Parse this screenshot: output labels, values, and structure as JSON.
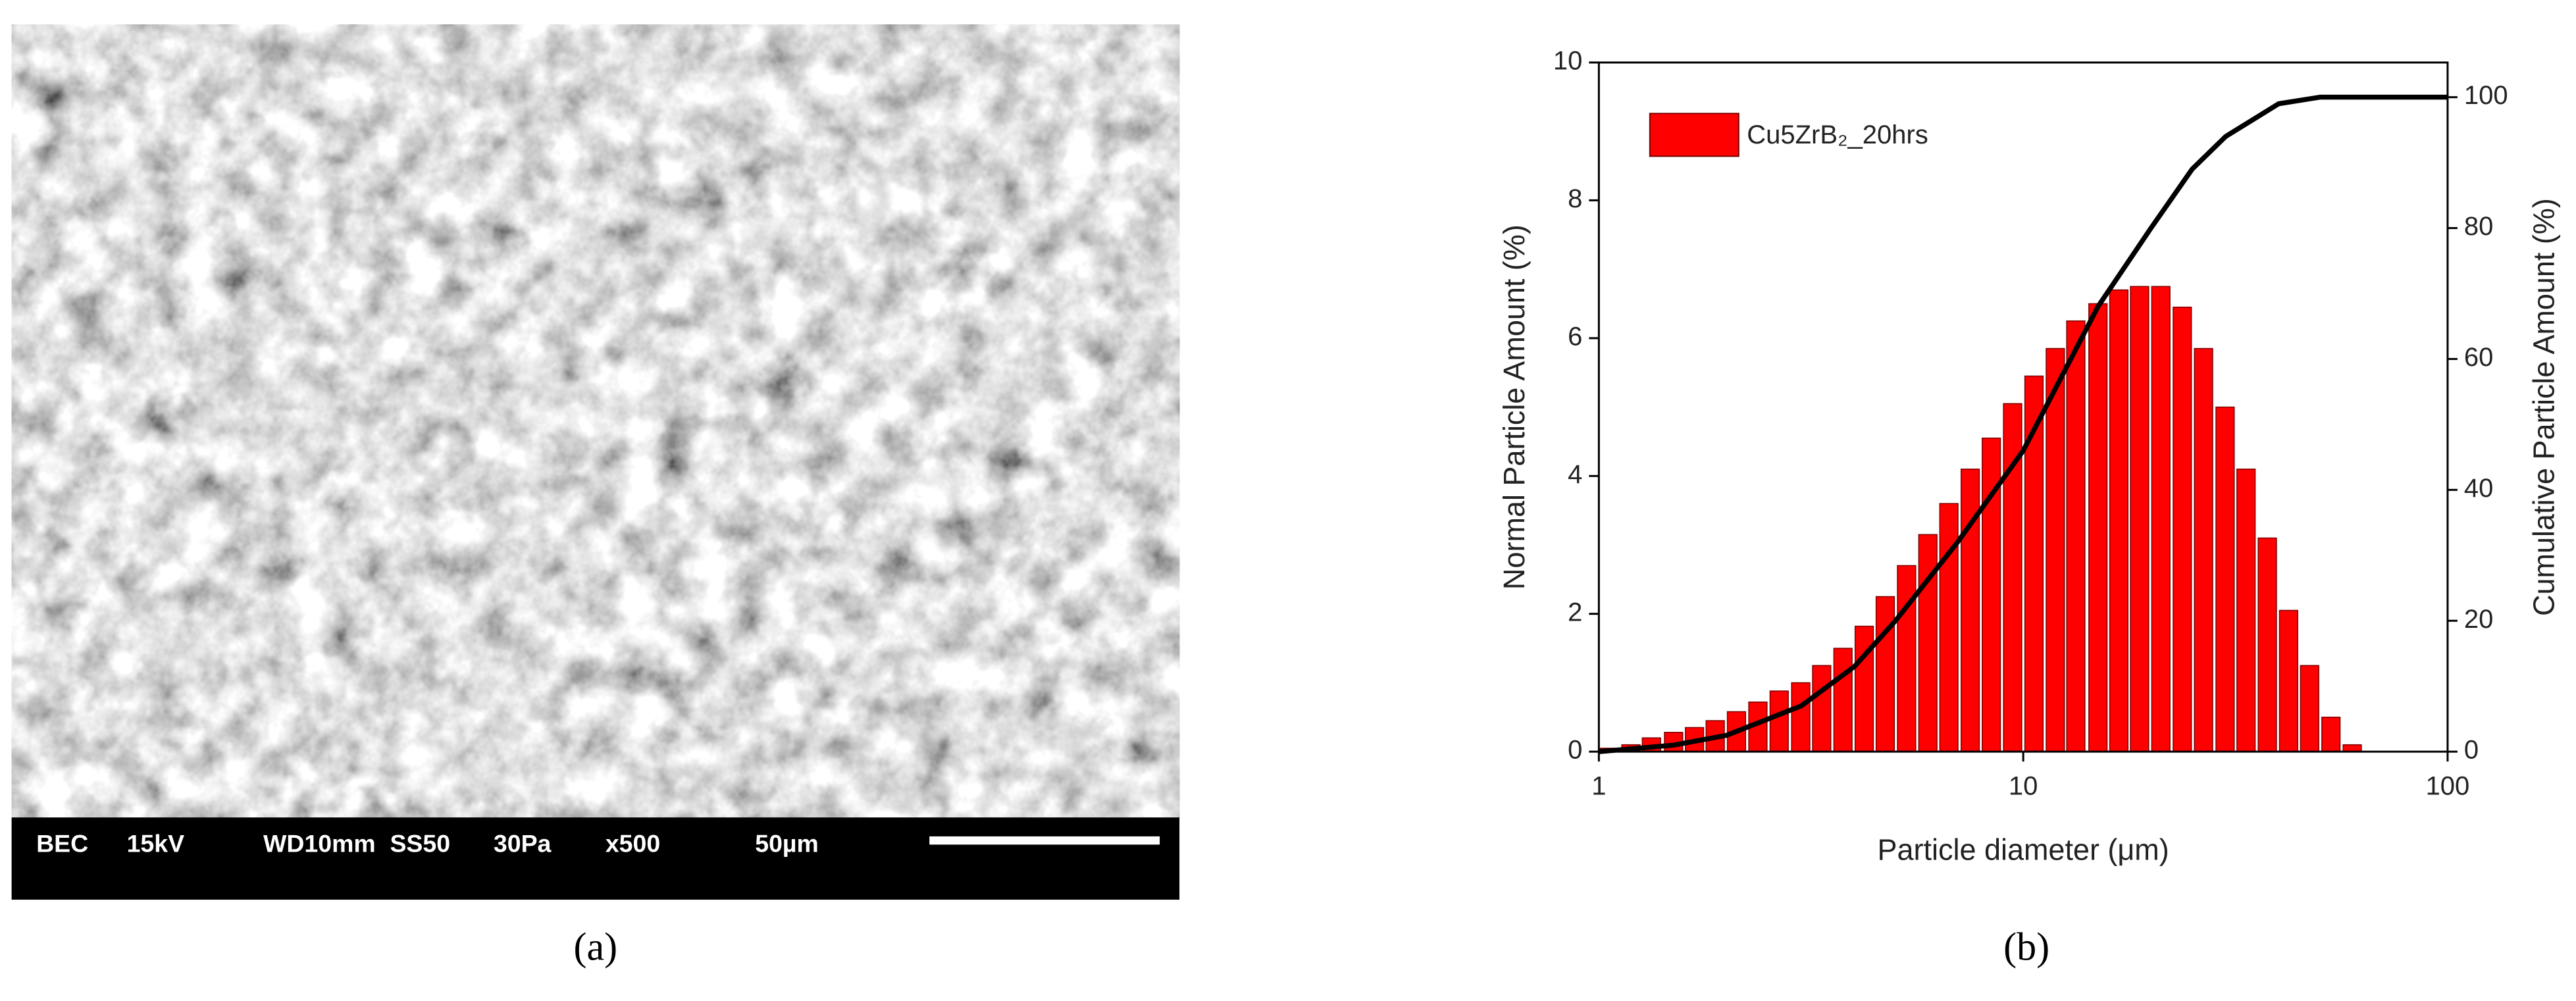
{
  "figure": {
    "sem_info": [
      "BEC",
      "15kV",
      "WD10mm",
      "SS50",
      "30Pa",
      "x500",
      "50µm"
    ],
    "captions": [
      "(a)",
      "(b)"
    ]
  },
  "chart_data": {
    "type": "bar",
    "xlabel": "Particle diameter (μm)",
    "ylabel": "Normal Particle Amount (%)",
    "y2label": "Cumulative Particle Amount (%)",
    "xscale": "log",
    "xlim": [
      1,
      100
    ],
    "xticks": [
      1,
      10,
      100
    ],
    "ylim": [
      0,
      10
    ],
    "yticks": [
      0,
      2,
      4,
      6,
      8,
      10
    ],
    "y2lim": [
      0,
      105.3
    ],
    "y2ticks": [
      0,
      20,
      40,
      60,
      80,
      100
    ],
    "legend": "upper left",
    "series": [
      {
        "name": "Cu5ZrB₂_20hrs",
        "type": "bar",
        "color": "#ff0000",
        "x": [
          1.06,
          1.19,
          1.33,
          1.5,
          1.68,
          1.88,
          2.11,
          2.37,
          2.66,
          2.99,
          3.35,
          3.76,
          4.22,
          4.73,
          5.31,
          5.96,
          6.68,
          7.5,
          8.41,
          9.44,
          10.6,
          11.9,
          13.3,
          15.0,
          16.8,
          18.8,
          21.1,
          23.7,
          26.6,
          29.9,
          33.5,
          37.6,
          42.2,
          47.3,
          53.1,
          59.6
        ],
        "values": [
          0.05,
          0.1,
          0.2,
          0.28,
          0.35,
          0.45,
          0.58,
          0.72,
          0.88,
          1.0,
          1.25,
          1.5,
          1.82,
          2.25,
          2.7,
          3.15,
          3.6,
          4.1,
          4.55,
          5.05,
          5.45,
          5.85,
          6.25,
          6.5,
          6.7,
          6.75,
          6.75,
          6.45,
          5.85,
          5.0,
          4.1,
          3.1,
          2.05,
          1.25,
          0.5,
          0.1
        ]
      },
      {
        "type": "line",
        "axis": "y2",
        "color": "#000000",
        "x": [
          1,
          1.5,
          2,
          3,
          4,
          5,
          7,
          10,
          15,
          20,
          25,
          30,
          40,
          50,
          100
        ],
        "values": [
          0,
          1,
          2.5,
          7,
          13,
          20,
          32,
          46,
          68,
          80,
          89,
          94,
          99,
          100,
          100
        ]
      }
    ]
  }
}
